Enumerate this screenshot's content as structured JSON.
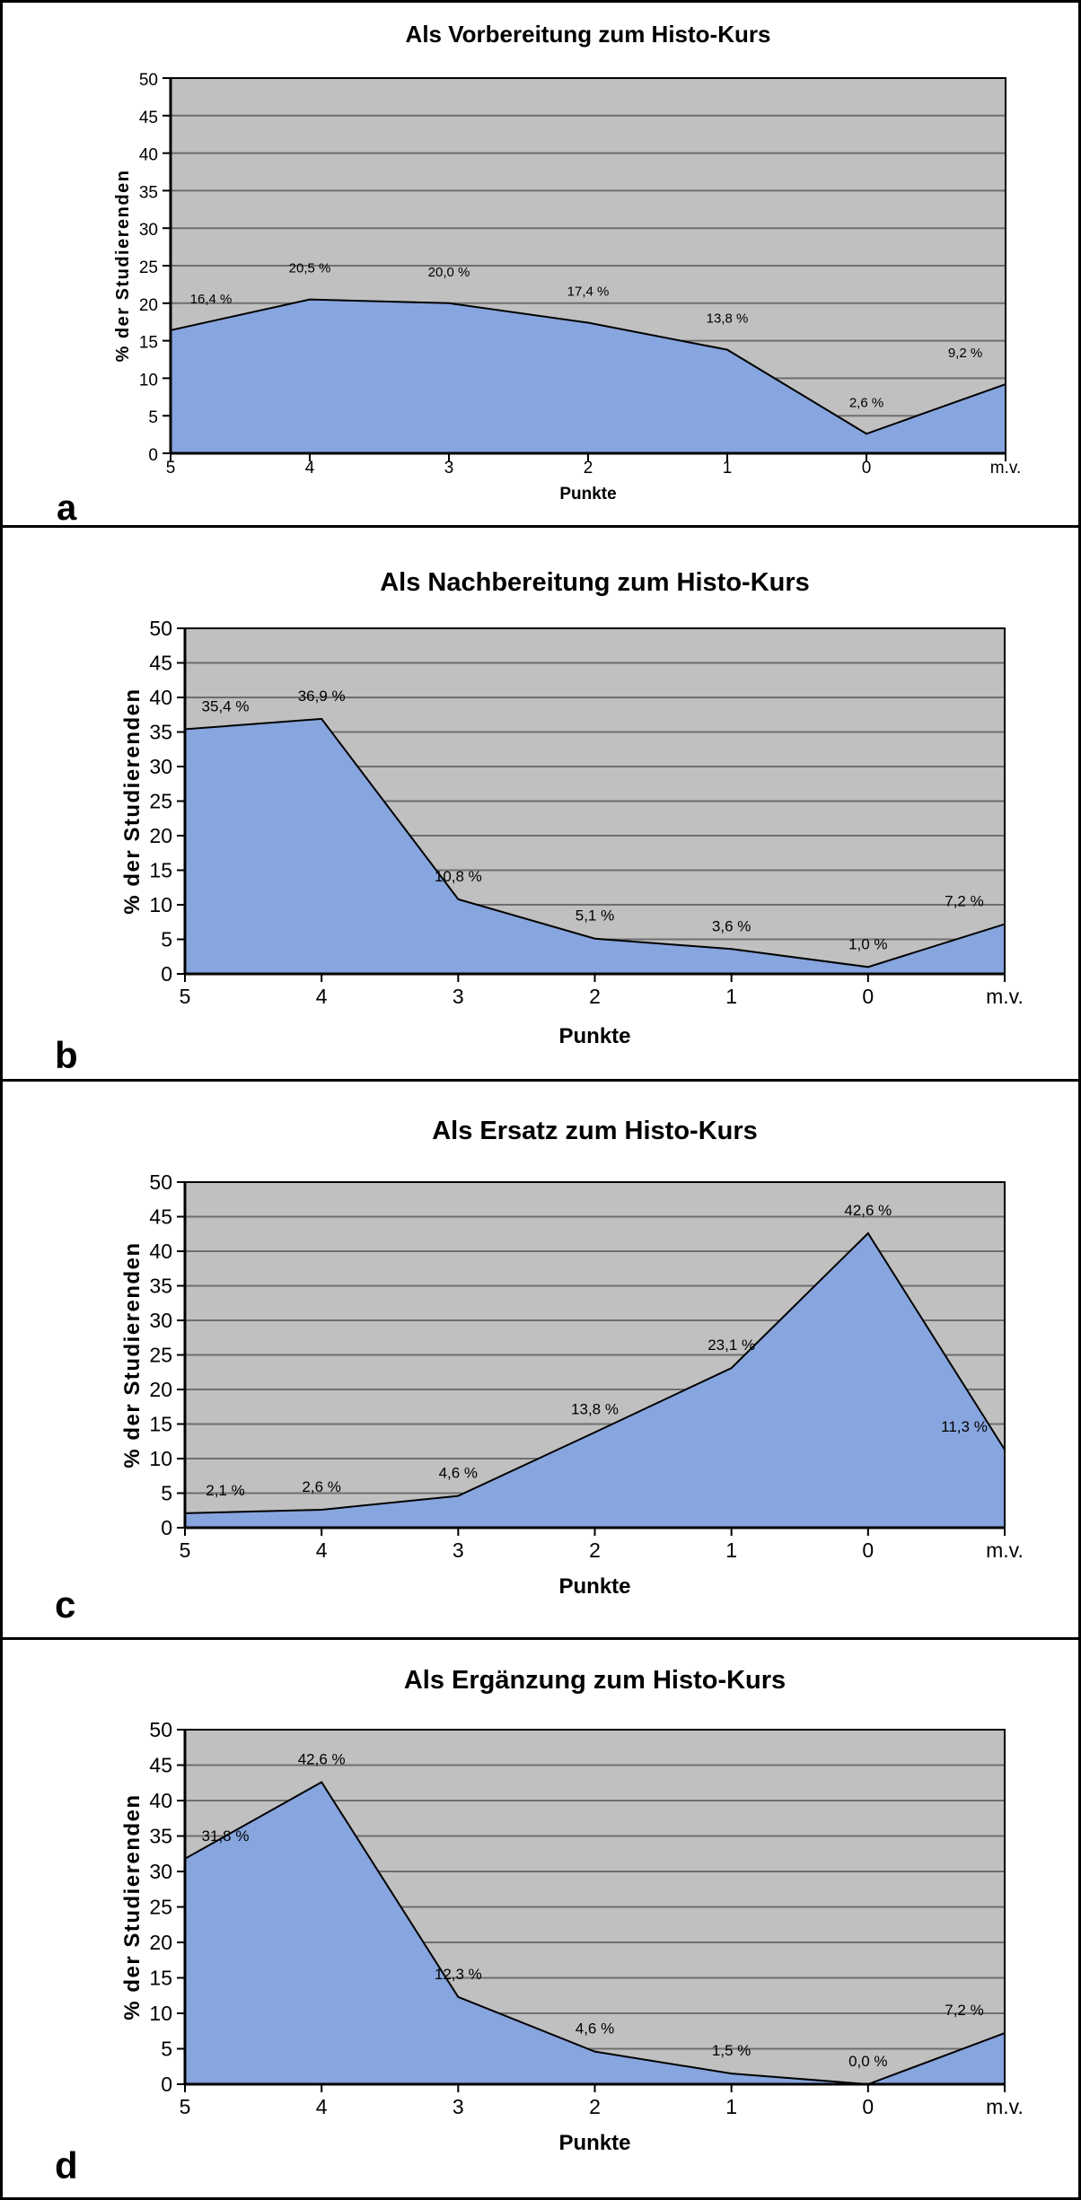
{
  "colors": {
    "area_fill": "#87A5DE",
    "area_outline": "#000000",
    "plot_bg": "#C0C0C0",
    "gridline": "#6E6E6E",
    "axis": "#000000",
    "text": "#000000",
    "panel_bg": "#FFFFFF",
    "frame": "#000000"
  },
  "chart_data": [
    {
      "type": "area",
      "panel_letter": "a",
      "title": "Als Vorbereitung zum Histo-Kurs",
      "categories": [
        "5",
        "4",
        "3",
        "2",
        "1",
        "0",
        "m.v."
      ],
      "values": [
        16.4,
        20.5,
        20.0,
        17.4,
        13.8,
        2.6,
        9.2
      ],
      "value_labels": [
        "16,4 %",
        "20,5 %",
        "20,0 %",
        "17,4 %",
        "13,8 %",
        "2,6 %",
        "9,2 %"
      ],
      "xlabel": "Punkte",
      "ylabel": "% der Studierenden",
      "ylim": [
        0,
        50
      ],
      "y_tick_step": 5,
      "y_tick_labels": [
        "0",
        "5",
        "10",
        "15",
        "20",
        "25",
        "30",
        "35",
        "40",
        "45",
        "50"
      ],
      "grid": true,
      "legend": "none"
    },
    {
      "type": "area",
      "panel_letter": "b",
      "title": "Als Nachbereitung zum Histo-Kurs",
      "categories": [
        "5",
        "4",
        "3",
        "2",
        "1",
        "0",
        "m.v."
      ],
      "values": [
        35.4,
        36.9,
        10.8,
        5.1,
        3.6,
        1.0,
        7.2
      ],
      "value_labels": [
        "35,4 %",
        "36,9 %",
        "10,8 %",
        "5,1 %",
        "3,6 %",
        "1,0 %",
        "7,2 %"
      ],
      "xlabel": "Punkte",
      "ylabel": "% der Studierenden",
      "ylim": [
        0,
        50
      ],
      "y_tick_step": 5,
      "y_tick_labels": [
        "0",
        "5",
        "10",
        "15",
        "20",
        "25",
        "30",
        "35",
        "40",
        "45",
        "50"
      ],
      "grid": true,
      "legend": "none"
    },
    {
      "type": "area",
      "panel_letter": "c",
      "title": "Als Ersatz zum Histo-Kurs",
      "categories": [
        "5",
        "4",
        "3",
        "2",
        "1",
        "0",
        "m.v."
      ],
      "values": [
        2.1,
        2.6,
        4.6,
        13.8,
        23.1,
        42.6,
        11.3
      ],
      "value_labels": [
        "2,1 %",
        "2,6 %",
        "4,6 %",
        "13,8 %",
        "23,1 %",
        "42,6 %",
        "11,3 %"
      ],
      "xlabel": "Punkte",
      "ylabel": "% der Studierenden",
      "ylim": [
        0,
        50
      ],
      "y_tick_step": 5,
      "y_tick_labels": [
        "0",
        "5",
        "10",
        "15",
        "20",
        "25",
        "30",
        "35",
        "40",
        "45",
        "50"
      ],
      "grid": true,
      "legend": "none"
    },
    {
      "type": "area",
      "panel_letter": "d",
      "title": "Als Ergänzung zum Histo-Kurs",
      "categories": [
        "5",
        "4",
        "3",
        "2",
        "1",
        "0",
        "m.v."
      ],
      "values": [
        31.8,
        42.6,
        12.3,
        4.6,
        1.5,
        0.0,
        7.2
      ],
      "value_labels": [
        "31,8 %",
        "42,6 %",
        "12,3 %",
        "4,6 %",
        "1,5 %",
        "0,0 %",
        "7,2 %"
      ],
      "xlabel": "Punkte",
      "ylabel": "% der Studierenden",
      "ylim": [
        0,
        50
      ],
      "y_tick_step": 5,
      "y_tick_labels": [
        "0",
        "5",
        "10",
        "15",
        "20",
        "25",
        "30",
        "35",
        "40",
        "45",
        "50"
      ],
      "grid": true,
      "legend": "none"
    }
  ]
}
